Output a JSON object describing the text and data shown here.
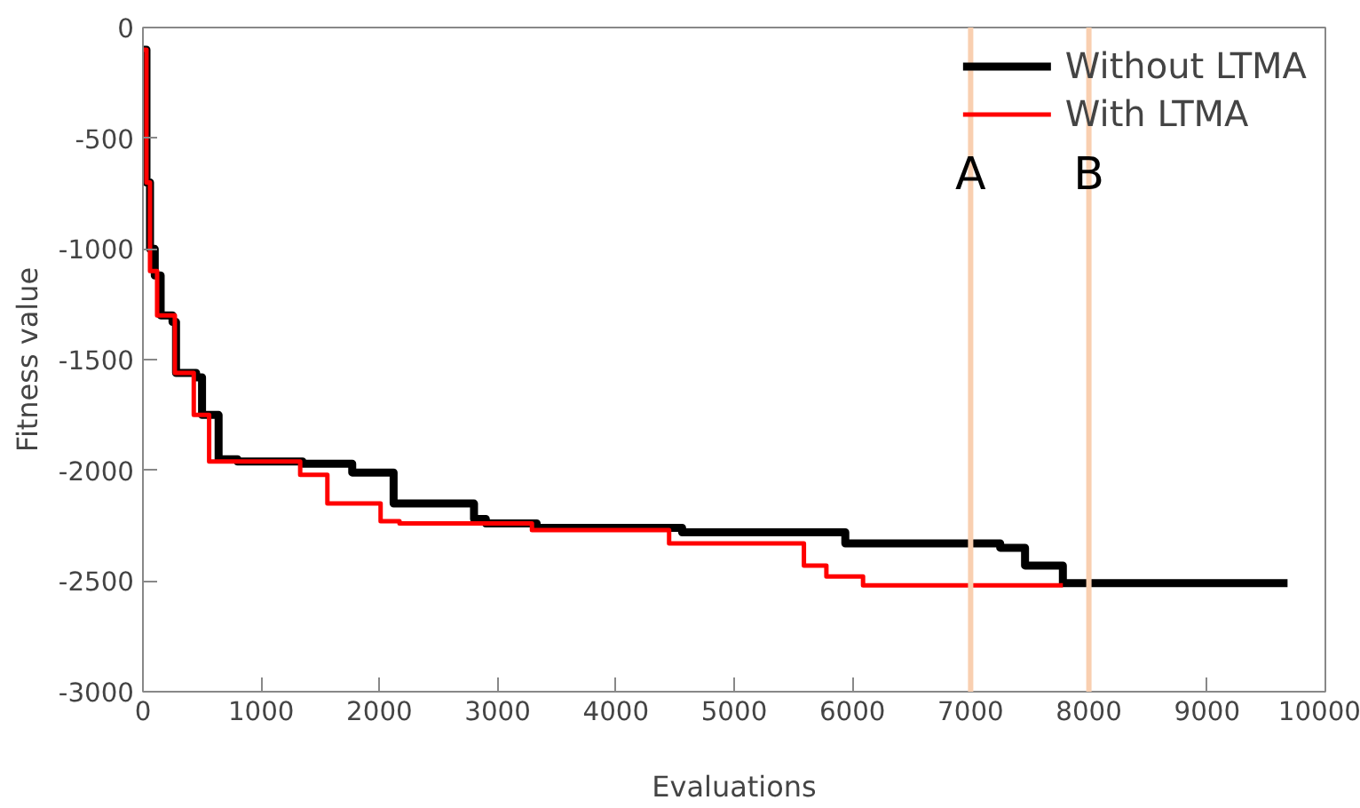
{
  "chart_data": {
    "type": "step",
    "xlabel": "Evaluations",
    "ylabel": "Fitness value",
    "xlim": [
      0,
      10000
    ],
    "ylim": [
      -3000,
      0
    ],
    "xticks": [
      0,
      1000,
      2000,
      3000,
      4000,
      5000,
      6000,
      7000,
      8000,
      9000,
      10000
    ],
    "yticks": [
      -3000,
      -2500,
      -2000,
      -1500,
      -1000,
      -500,
      0
    ],
    "grid": false,
    "legend": "top right",
    "series": [
      {
        "name": "Without LTMA",
        "color": "#000000",
        "x": [
          0,
          30,
          60,
          100,
          150,
          250,
          280,
          450,
          500,
          640,
          800,
          1350,
          1770,
          2120,
          2800,
          2900,
          3330,
          4560,
          5940,
          7250,
          7460,
          7780,
          9680
        ],
        "values": [
          -100,
          -700,
          -1000,
          -1120,
          -1300,
          -1330,
          -1560,
          -1580,
          -1750,
          -1950,
          -1960,
          -1970,
          -2010,
          -2150,
          -2220,
          -2240,
          -2260,
          -2280,
          -2330,
          -2350,
          -2430,
          -2510,
          -2510
        ]
      },
      {
        "name": "With LTMA",
        "color": "#ff0000",
        "x": [
          0,
          30,
          60,
          120,
          270,
          430,
          560,
          1330,
          1560,
          2010,
          2170,
          3290,
          4450,
          5590,
          5780,
          6090,
          7780
        ],
        "values": [
          -100,
          -700,
          -1100,
          -1300,
          -1560,
          -1750,
          -1960,
          -2020,
          -2150,
          -2230,
          -2240,
          -2270,
          -2330,
          -2430,
          -2480,
          -2520,
          -2520
        ]
      }
    ],
    "ref_lines": [
      {
        "axis": "x",
        "value": 7000,
        "label": "A",
        "color": "#f9cfb0"
      },
      {
        "axis": "x",
        "value": 8000,
        "label": "B",
        "color": "#f9cfb0"
      }
    ]
  }
}
